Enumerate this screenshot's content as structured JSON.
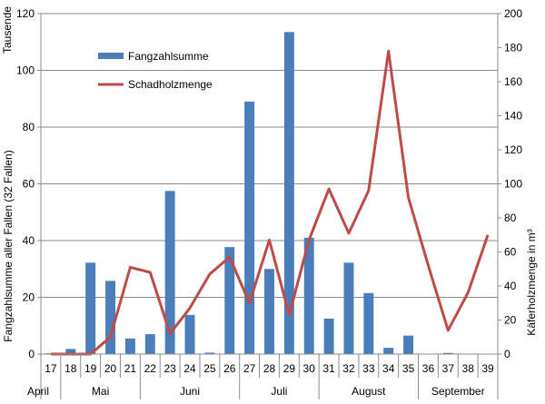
{
  "chart_data": {
    "type": "bar",
    "x_label_top": "Tausende",
    "ylabel_left": "Fangzahlsumme aller Fallen (32 Fallen)",
    "ylabel_right": "Käferholzmenge in m³",
    "ylim_left": [
      0,
      120
    ],
    "ylim_right": [
      0,
      200
    ],
    "yticks_left": [
      "0",
      "20",
      "40",
      "60",
      "80",
      "100",
      "120"
    ],
    "yticks_right": [
      "0",
      "20",
      "40",
      "60",
      "80",
      "100",
      "120",
      "140",
      "160",
      "180",
      "200"
    ],
    "grid": true,
    "legend_position": "top-left",
    "categories": [
      "17",
      "18",
      "19",
      "20",
      "21",
      "22",
      "23",
      "24",
      "25",
      "26",
      "27",
      "28",
      "29",
      "30",
      "31",
      "32",
      "33",
      "34",
      "35",
      "36",
      "37",
      "38",
      "39"
    ],
    "months": [
      {
        "label": "April",
        "from": "17",
        "to": "17"
      },
      {
        "label": "Mai",
        "from": "18",
        "to": "21"
      },
      {
        "label": "Juni",
        "from": "22",
        "to": "26"
      },
      {
        "label": "Juli",
        "from": "27",
        "to": "30"
      },
      {
        "label": "August",
        "from": "31",
        "to": "35"
      },
      {
        "label": "September",
        "from": "36",
        "to": "39"
      }
    ],
    "series": [
      {
        "name": "Fangzahlsumme",
        "type": "bar",
        "axis": "left",
        "color": "#4a7ebb",
        "values": [
          0.3,
          1.8,
          32.2,
          25.8,
          5.5,
          7,
          57.5,
          13.8,
          0.5,
          37.7,
          89,
          30,
          113.5,
          41,
          12.5,
          32.2,
          21.5,
          2.2,
          6.5,
          0,
          0.4,
          0,
          0
        ]
      },
      {
        "name": "Schadholzmenge",
        "type": "line",
        "axis": "right",
        "color": "#be4b48",
        "values": [
          0,
          0,
          0,
          10,
          51,
          48,
          12,
          27,
          47,
          57,
          30,
          67,
          23,
          67,
          97,
          71,
          96,
          178,
          92,
          52,
          14,
          36,
          70
        ]
      }
    ]
  }
}
